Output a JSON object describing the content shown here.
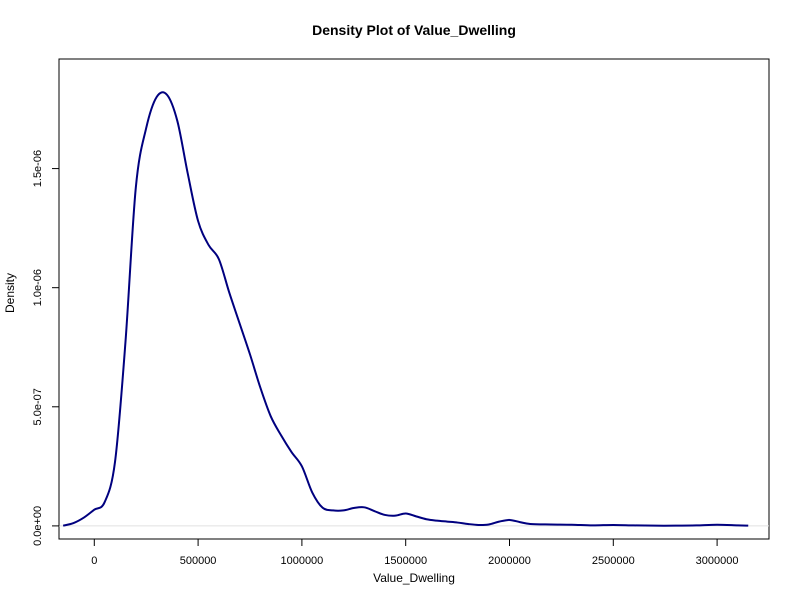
{
  "chart_data": {
    "type": "line",
    "title": "Density Plot of Value_Dwelling",
    "xlabel": "Value_Dwelling",
    "ylabel": "Density",
    "xlim": [
      -170000,
      3250000
    ],
    "ylim": [
      -5.5e-08,
      1.96e-06
    ],
    "grid": false,
    "x_ticks": [
      {
        "value": 0,
        "label": "0"
      },
      {
        "value": 500000,
        "label": "500000"
      },
      {
        "value": 1000000,
        "label": "1000000"
      },
      {
        "value": 1500000,
        "label": "1500000"
      },
      {
        "value": 2000000,
        "label": "2000000"
      },
      {
        "value": 2500000,
        "label": "2500000"
      },
      {
        "value": 3000000,
        "label": "3000000"
      }
    ],
    "y_ticks": [
      {
        "value": 0,
        "label": "0.0e+00"
      },
      {
        "value": 5e-07,
        "label": "5.0e-07"
      },
      {
        "value": 1e-06,
        "label": "1.0e-06"
      },
      {
        "value": 1.5e-06,
        "label": "1.5e-06"
      }
    ],
    "series": [
      {
        "color": "#00007f",
        "x": [
          -150000,
          -100000,
          -50000,
          0,
          50000,
          100000,
          150000,
          200000,
          250000,
          300000,
          350000,
          400000,
          450000,
          500000,
          550000,
          600000,
          650000,
          700000,
          750000,
          800000,
          850000,
          900000,
          950000,
          1000000,
          1050000,
          1100000,
          1150000,
          1200000,
          1250000,
          1300000,
          1350000,
          1400000,
          1450000,
          1500000,
          1550000,
          1600000,
          1650000,
          1700000,
          1750000,
          1800000,
          1850000,
          1900000,
          1950000,
          2000000,
          2050000,
          2100000,
          2200000,
          2300000,
          2400000,
          2500000,
          2600000,
          2700000,
          2800000,
          2900000,
          3000000,
          3100000,
          3150000
        ],
        "y": [
          1e-09,
          1.2e-08,
          3.5e-08,
          6.8e-08,
          1e-07,
          2.7e-07,
          7.7e-07,
          1.42e-06,
          1.67e-06,
          1.8e-06,
          1.81e-06,
          1.7e-06,
          1.48e-06,
          1.28e-06,
          1.18e-06,
          1.12e-06,
          9.8e-07,
          8.5e-07,
          7.2e-07,
          5.8e-07,
          4.6e-07,
          3.8e-07,
          3.1e-07,
          2.5e-07,
          1.4e-07,
          7.6e-08,
          6.5e-08,
          6.5e-08,
          7.5e-08,
          7.8e-08,
          6.2e-08,
          4.6e-08,
          4.3e-08,
          5.2e-08,
          4e-08,
          2.8e-08,
          2.2e-08,
          1.8e-08,
          1.4e-08,
          8e-09,
          4e-09,
          6e-09,
          1.8e-08,
          2.5e-08,
          1.6e-08,
          8e-09,
          6e-09,
          5e-09,
          2e-09,
          4e-09,
          2e-09,
          1e-09,
          1e-09,
          2e-09,
          5e-09,
          2e-09,
          1e-09
        ]
      }
    ]
  }
}
